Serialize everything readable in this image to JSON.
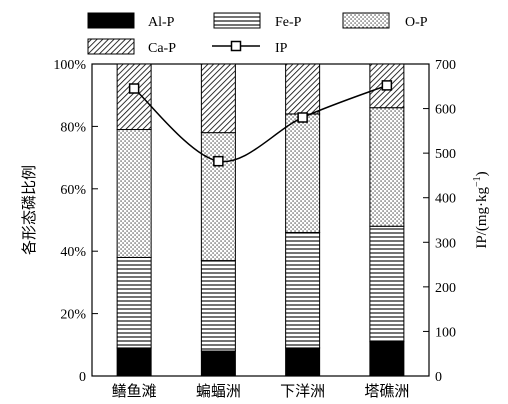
{
  "chart_data": {
    "type": "bar",
    "stacked": true,
    "categories": [
      "鳝鱼滩",
      "蝙蝠洲",
      "下洋洲",
      "塔礁洲"
    ],
    "series": [
      {
        "name": "Al-P",
        "pattern": "solid",
        "values": [
          9,
          8,
          9,
          11
        ]
      },
      {
        "name": "Fe-P",
        "pattern": "horizontal-lines",
        "values": [
          29,
          29,
          37,
          37
        ]
      },
      {
        "name": "O-P",
        "pattern": "dots",
        "values": [
          41,
          41,
          38,
          38
        ]
      },
      {
        "name": "Ca-P",
        "pattern": "diagonal-hatch",
        "values": [
          21,
          22,
          16,
          14
        ]
      }
    ],
    "line_series": {
      "name": "IP",
      "axis": "right",
      "marker": "square",
      "values": [
        645,
        482,
        580,
        652
      ]
    },
    "ylabel": "各形态磷比例",
    "ylabel_right_main": "IP/(mg·kg",
    "ylabel_right_sup": "−1",
    "ylabel_right_end": ")",
    "ylim": [
      0,
      100
    ],
    "y_ticks": [
      "0",
      "20%",
      "40%",
      "60%",
      "80%",
      "100%"
    ],
    "y2lim": [
      0,
      700
    ],
    "y2_ticks": [
      "0",
      "100",
      "200",
      "300",
      "400",
      "500",
      "600",
      "700"
    ],
    "legend_position": "top",
    "grid": false
  }
}
